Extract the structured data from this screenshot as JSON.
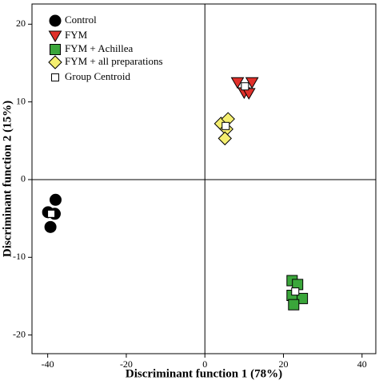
{
  "chart_data": {
    "type": "scatter",
    "xlabel": "Discriminant function 1 (78%)",
    "ylabel": "Discriminant function 2 (15%)",
    "xlim": [
      -44,
      43.5
    ],
    "ylim": [
      -22.4,
      22.6
    ],
    "xticks": [
      -40,
      -20,
      0,
      20,
      40
    ],
    "yticks": [
      -20,
      -10,
      0,
      10,
      20
    ],
    "legend": "upper-left",
    "series": [
      {
        "name": "Control",
        "color": "#000000",
        "marker": "circle",
        "x": [
          -38.0,
          -39.9,
          -38.2,
          -39.3
        ],
        "y": [
          -2.6,
          -4.2,
          -4.4,
          -6.1
        ]
      },
      {
        "name": "FYM",
        "color": "#e0302a",
        "marker": "triangle-down",
        "x": [
          8.3,
          12.0,
          10.0,
          11.2
        ],
        "y": [
          12.5,
          12.5,
          11.2,
          11.1
        ]
      },
      {
        "name": "FYM + Achillea",
        "color": "#3aa63a",
        "marker": "square",
        "x": [
          22.2,
          23.6,
          22.2,
          24.8,
          22.6
        ],
        "y": [
          -13.0,
          -13.5,
          -14.9,
          -15.3,
          -16.1
        ]
      },
      {
        "name": "FYM + all preparations",
        "color": "#f5ef70",
        "marker": "diamond",
        "x": [
          4.1,
          5.9,
          5.5,
          5.1
        ],
        "y": [
          7.2,
          7.8,
          6.5,
          5.3
        ]
      },
      {
        "name": "Group Centroid",
        "color": "#ffffff",
        "marker": "small-square",
        "x": [
          -39.1,
          10.2,
          23.0,
          5.3
        ],
        "y": [
          -4.4,
          12.0,
          -14.4,
          6.9
        ]
      }
    ]
  }
}
